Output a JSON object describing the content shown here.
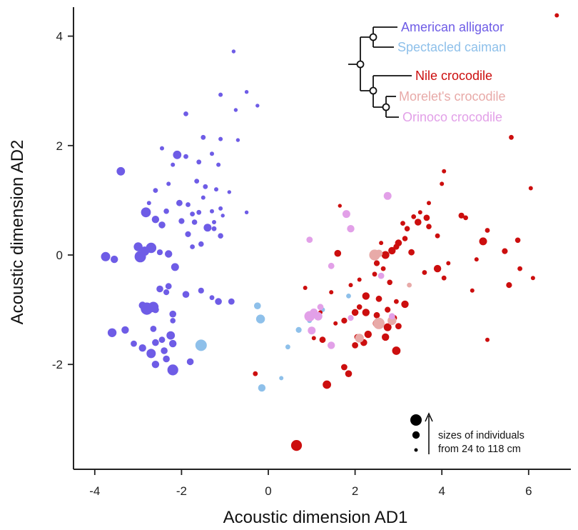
{
  "chart_data": {
    "type": "scatter",
    "xlabel": "Acoustic dimension AD1",
    "ylabel": "Acoustic dimension AD2",
    "xlim": [
      -4.5,
      7.2
    ],
    "ylim": [
      -3.9,
      4.5
    ],
    "xticks": [
      -4,
      -2,
      0,
      2,
      4,
      6
    ],
    "yticks": [
      -2,
      0,
      2,
      4
    ],
    "xtick_labels": [
      "-4",
      "-2",
      "0",
      "2",
      "4",
      "6"
    ],
    "ytick_labels": [
      "-2",
      "0",
      "2",
      "4"
    ],
    "size_note": {
      "line1": "sizes of individuals",
      "line2": "from 24 to 118 cm"
    },
    "series": [
      {
        "name": "American alligator",
        "color": "#6e5ce6",
        "points": [
          [
            -0.8,
            3.72,
            0.1
          ],
          [
            -0.5,
            2.98,
            0.1
          ],
          [
            -0.25,
            2.73,
            0.1
          ],
          [
            -1.1,
            2.93,
            0.15
          ],
          [
            -1.9,
            2.58,
            0.2
          ],
          [
            -0.75,
            2.65,
            0.1
          ],
          [
            -1.5,
            2.15,
            0.2
          ],
          [
            -1.1,
            2.12,
            0.15
          ],
          [
            -0.7,
            2.1,
            0.1
          ],
          [
            -2.45,
            1.95,
            0.15
          ],
          [
            -2.1,
            1.83,
            0.55
          ],
          [
            -1.9,
            1.8,
            0.2
          ],
          [
            -1.3,
            1.85,
            0.15
          ],
          [
            -1.6,
            1.7,
            0.2
          ],
          [
            -3.4,
            1.53,
            0.55
          ],
          [
            -2.2,
            1.65,
            0.15
          ],
          [
            -1.15,
            1.65,
            0.15
          ],
          [
            -2.3,
            1.3,
            0.15
          ],
          [
            -1.65,
            1.35,
            0.2
          ],
          [
            -1.45,
            1.25,
            0.2
          ],
          [
            -2.6,
            1.18,
            0.2
          ],
          [
            -1.2,
            1.2,
            0.15
          ],
          [
            -1.5,
            1.05,
            0.15
          ],
          [
            -0.9,
            1.15,
            0.1
          ],
          [
            -2.75,
            0.95,
            0.15
          ],
          [
            -2.05,
            0.95,
            0.35
          ],
          [
            -1.85,
            0.92,
            0.2
          ],
          [
            -1.1,
            0.85,
            0.15
          ],
          [
            -2.35,
            0.8,
            0.25
          ],
          [
            -2.82,
            0.78,
            0.7
          ],
          [
            -0.5,
            0.78,
            0.1
          ],
          [
            -1.75,
            0.75,
            0.2
          ],
          [
            -1.6,
            0.78,
            0.2
          ],
          [
            -1.3,
            0.8,
            0.15
          ],
          [
            -1.05,
            0.72,
            0.1
          ],
          [
            -2.0,
            0.62,
            0.3
          ],
          [
            -1.7,
            0.6,
            0.25
          ],
          [
            -1.25,
            0.6,
            0.15
          ],
          [
            -2.6,
            0.65,
            0.45
          ],
          [
            -2.45,
            0.55,
            0.4
          ],
          [
            -1.4,
            0.5,
            0.5
          ],
          [
            -1.25,
            0.48,
            0.2
          ],
          [
            -1.85,
            0.38,
            0.3
          ],
          [
            -1.1,
            0.35,
            0.25
          ],
          [
            -1.55,
            0.2,
            0.25
          ],
          [
            -1.75,
            0.15,
            0.2
          ],
          [
            -3.0,
            0.15,
            0.6
          ],
          [
            -2.7,
            0.13,
            0.75
          ],
          [
            -2.85,
            0.07,
            0.65
          ],
          [
            -2.5,
            0.05,
            0.3
          ],
          [
            -3.75,
            -0.03,
            0.65
          ],
          [
            -3.55,
            -0.08,
            0.45
          ],
          [
            -2.95,
            -0.03,
            0.85
          ],
          [
            -2.3,
            0.02,
            0.45
          ],
          [
            -2.15,
            -0.22,
            0.5
          ],
          [
            -2.3,
            -0.57,
            0.35
          ],
          [
            -2.5,
            -0.62,
            0.4
          ],
          [
            -2.35,
            -0.68,
            0.3
          ],
          [
            -1.9,
            -0.72,
            0.4
          ],
          [
            -1.55,
            -0.65,
            0.3
          ],
          [
            -1.3,
            -0.78,
            0.2
          ],
          [
            -1.15,
            -0.85,
            0.4
          ],
          [
            -0.85,
            -0.85,
            0.35
          ],
          [
            -2.65,
            -0.95,
            0.75
          ],
          [
            -2.9,
            -0.92,
            0.45
          ],
          [
            -2.8,
            -0.98,
            0.95
          ],
          [
            -2.6,
            -1.0,
            0.4
          ],
          [
            -2.2,
            -1.08,
            0.4
          ],
          [
            -2.2,
            -1.2,
            0.25
          ],
          [
            -3.6,
            -1.42,
            0.6
          ],
          [
            -3.3,
            -1.37,
            0.45
          ],
          [
            -2.65,
            -1.35,
            0.35
          ],
          [
            -2.25,
            -1.47,
            0.55
          ],
          [
            -2.45,
            -1.55,
            0.35
          ],
          [
            -2.6,
            -1.6,
            0.4
          ],
          [
            -2.2,
            -1.62,
            0.45
          ],
          [
            -3.1,
            -1.62,
            0.35
          ],
          [
            -2.9,
            -1.7,
            0.45
          ],
          [
            -2.4,
            -1.75,
            0.4
          ],
          [
            -2.7,
            -1.8,
            0.65
          ],
          [
            -2.35,
            -1.9,
            0.4
          ],
          [
            -2.6,
            -2.0,
            0.45
          ],
          [
            -1.8,
            -1.95,
            0.4
          ],
          [
            -2.2,
            -2.1,
            0.8
          ]
        ]
      },
      {
        "name": "Spectacled caiman",
        "color": "#8ec0ea",
        "points": [
          [
            -0.25,
            -0.93,
            0.4
          ],
          [
            -0.18,
            -1.17,
            0.6
          ],
          [
            -1.55,
            -1.65,
            0.85
          ],
          [
            0.7,
            -1.37,
            0.3
          ],
          [
            0.95,
            -1.2,
            0.2
          ],
          [
            0.45,
            -1.68,
            0.2
          ],
          [
            0.3,
            -2.25,
            0.15
          ],
          [
            -0.15,
            -2.43,
            0.45
          ],
          [
            1.85,
            -0.75,
            0.2
          ],
          [
            1.25,
            -1.0,
            0.2
          ]
        ]
      },
      {
        "name": "Nile crocodile",
        "color": "#cc0e0e",
        "points": [
          [
            6.65,
            4.38,
            0.15
          ],
          [
            5.6,
            2.15,
            0.2
          ],
          [
            4.05,
            1.53,
            0.15
          ],
          [
            4.0,
            1.3,
            0.15
          ],
          [
            6.05,
            1.22,
            0.15
          ],
          [
            3.7,
            0.95,
            0.15
          ],
          [
            3.5,
            0.78,
            0.15
          ],
          [
            3.35,
            0.7,
            0.2
          ],
          [
            1.65,
            0.9,
            0.1
          ],
          [
            3.65,
            0.68,
            0.35
          ],
          [
            4.45,
            0.72,
            0.3
          ],
          [
            4.55,
            0.68,
            0.2
          ],
          [
            3.45,
            0.6,
            0.4
          ],
          [
            3.1,
            0.58,
            0.2
          ],
          [
            3.7,
            0.52,
            0.25
          ],
          [
            3.2,
            0.48,
            0.25
          ],
          [
            5.05,
            0.45,
            0.2
          ],
          [
            3.9,
            0.35,
            0.2
          ],
          [
            3.15,
            0.3,
            0.25
          ],
          [
            3.0,
            0.22,
            0.4
          ],
          [
            4.95,
            0.25,
            0.5
          ],
          [
            5.75,
            0.27,
            0.25
          ],
          [
            2.6,
            0.22,
            0.15
          ],
          [
            2.85,
            0.08,
            0.45
          ],
          [
            2.7,
            0.0,
            0.5
          ],
          [
            2.95,
            0.15,
            0.3
          ],
          [
            3.3,
            0.05,
            0.35
          ],
          [
            5.45,
            0.07,
            0.3
          ],
          [
            4.15,
            -0.15,
            0.15
          ],
          [
            1.6,
            0.03,
            0.4
          ],
          [
            2.5,
            -0.15,
            0.3
          ],
          [
            4.8,
            -0.08,
            0.15
          ],
          [
            2.65,
            -0.25,
            0.2
          ],
          [
            3.9,
            -0.25,
            0.45
          ],
          [
            5.8,
            -0.25,
            0.2
          ],
          [
            3.6,
            -0.32,
            0.2
          ],
          [
            2.45,
            -0.35,
            0.2
          ],
          [
            2.1,
            -0.45,
            0.15
          ],
          [
            6.1,
            -0.42,
            0.15
          ],
          [
            4.05,
            -0.42,
            0.2
          ],
          [
            2.8,
            -0.5,
            0.25
          ],
          [
            5.55,
            -0.55,
            0.3
          ],
          [
            1.9,
            -0.55,
            0.15
          ],
          [
            0.85,
            -0.6,
            0.15
          ],
          [
            1.45,
            -0.68,
            0.15
          ],
          [
            4.7,
            -0.65,
            0.15
          ],
          [
            2.25,
            -0.75,
            0.45
          ],
          [
            2.55,
            -0.8,
            0.35
          ],
          [
            2.95,
            -0.85,
            0.2
          ],
          [
            3.15,
            -0.9,
            0.45
          ],
          [
            2.1,
            -0.95,
            0.25
          ],
          [
            2.25,
            -1.05,
            0.45
          ],
          [
            2.0,
            -1.05,
            0.4
          ],
          [
            2.75,
            -1.0,
            0.3
          ],
          [
            2.5,
            -1.1,
            0.35
          ],
          [
            1.2,
            -1.05,
            0.15
          ],
          [
            2.9,
            -1.15,
            0.3
          ],
          [
            1.75,
            -1.2,
            0.3
          ],
          [
            2.5,
            -1.25,
            0.5
          ],
          [
            3.0,
            -1.3,
            0.35
          ],
          [
            1.55,
            -1.25,
            0.15
          ],
          [
            2.75,
            -1.32,
            0.5
          ],
          [
            2.3,
            -1.45,
            0.45
          ],
          [
            2.05,
            -1.5,
            0.3
          ],
          [
            1.05,
            -1.52,
            0.15
          ],
          [
            2.7,
            -1.5,
            0.45
          ],
          [
            5.05,
            -1.55,
            0.15
          ],
          [
            1.25,
            -1.55,
            0.35
          ],
          [
            2.0,
            -1.65,
            0.35
          ],
          [
            2.2,
            -1.6,
            0.4
          ],
          [
            2.95,
            -1.75,
            0.55
          ],
          [
            1.75,
            -2.05,
            0.35
          ],
          [
            1.85,
            -2.17,
            0.4
          ],
          [
            -0.3,
            -2.17,
            0.2
          ],
          [
            1.35,
            -2.37,
            0.55
          ],
          [
            0.65,
            -3.48,
            0.8
          ]
        ]
      },
      {
        "name": "Morelet's crocodile",
        "color": "#e8aaa8",
        "points": [
          [
            2.45,
            0.0,
            0.8
          ],
          [
            2.55,
            0.03,
            0.45
          ],
          [
            2.55,
            -1.25,
            0.85
          ],
          [
            2.85,
            -1.2,
            0.6
          ],
          [
            2.1,
            -1.52,
            0.6
          ],
          [
            3.25,
            -0.55,
            0.2
          ]
        ]
      },
      {
        "name": "Orinoco crocodile",
        "color": "#e2a0e8",
        "points": [
          [
            2.75,
            1.08,
            0.5
          ],
          [
            1.8,
            0.75,
            0.5
          ],
          [
            1.9,
            0.48,
            0.45
          ],
          [
            0.95,
            0.28,
            0.35
          ],
          [
            1.45,
            -0.2,
            0.35
          ],
          [
            2.6,
            -0.38,
            0.35
          ],
          [
            1.2,
            -0.95,
            0.35
          ],
          [
            1.15,
            -1.12,
            0.55
          ],
          [
            0.95,
            -1.12,
            0.75
          ],
          [
            1.05,
            -1.05,
            0.5
          ],
          [
            1.0,
            -1.38,
            0.5
          ],
          [
            1.45,
            -1.65,
            0.45
          ],
          [
            1.9,
            -1.15,
            0.3
          ],
          [
            2.85,
            -1.12,
            0.35
          ]
        ]
      }
    ]
  }
}
